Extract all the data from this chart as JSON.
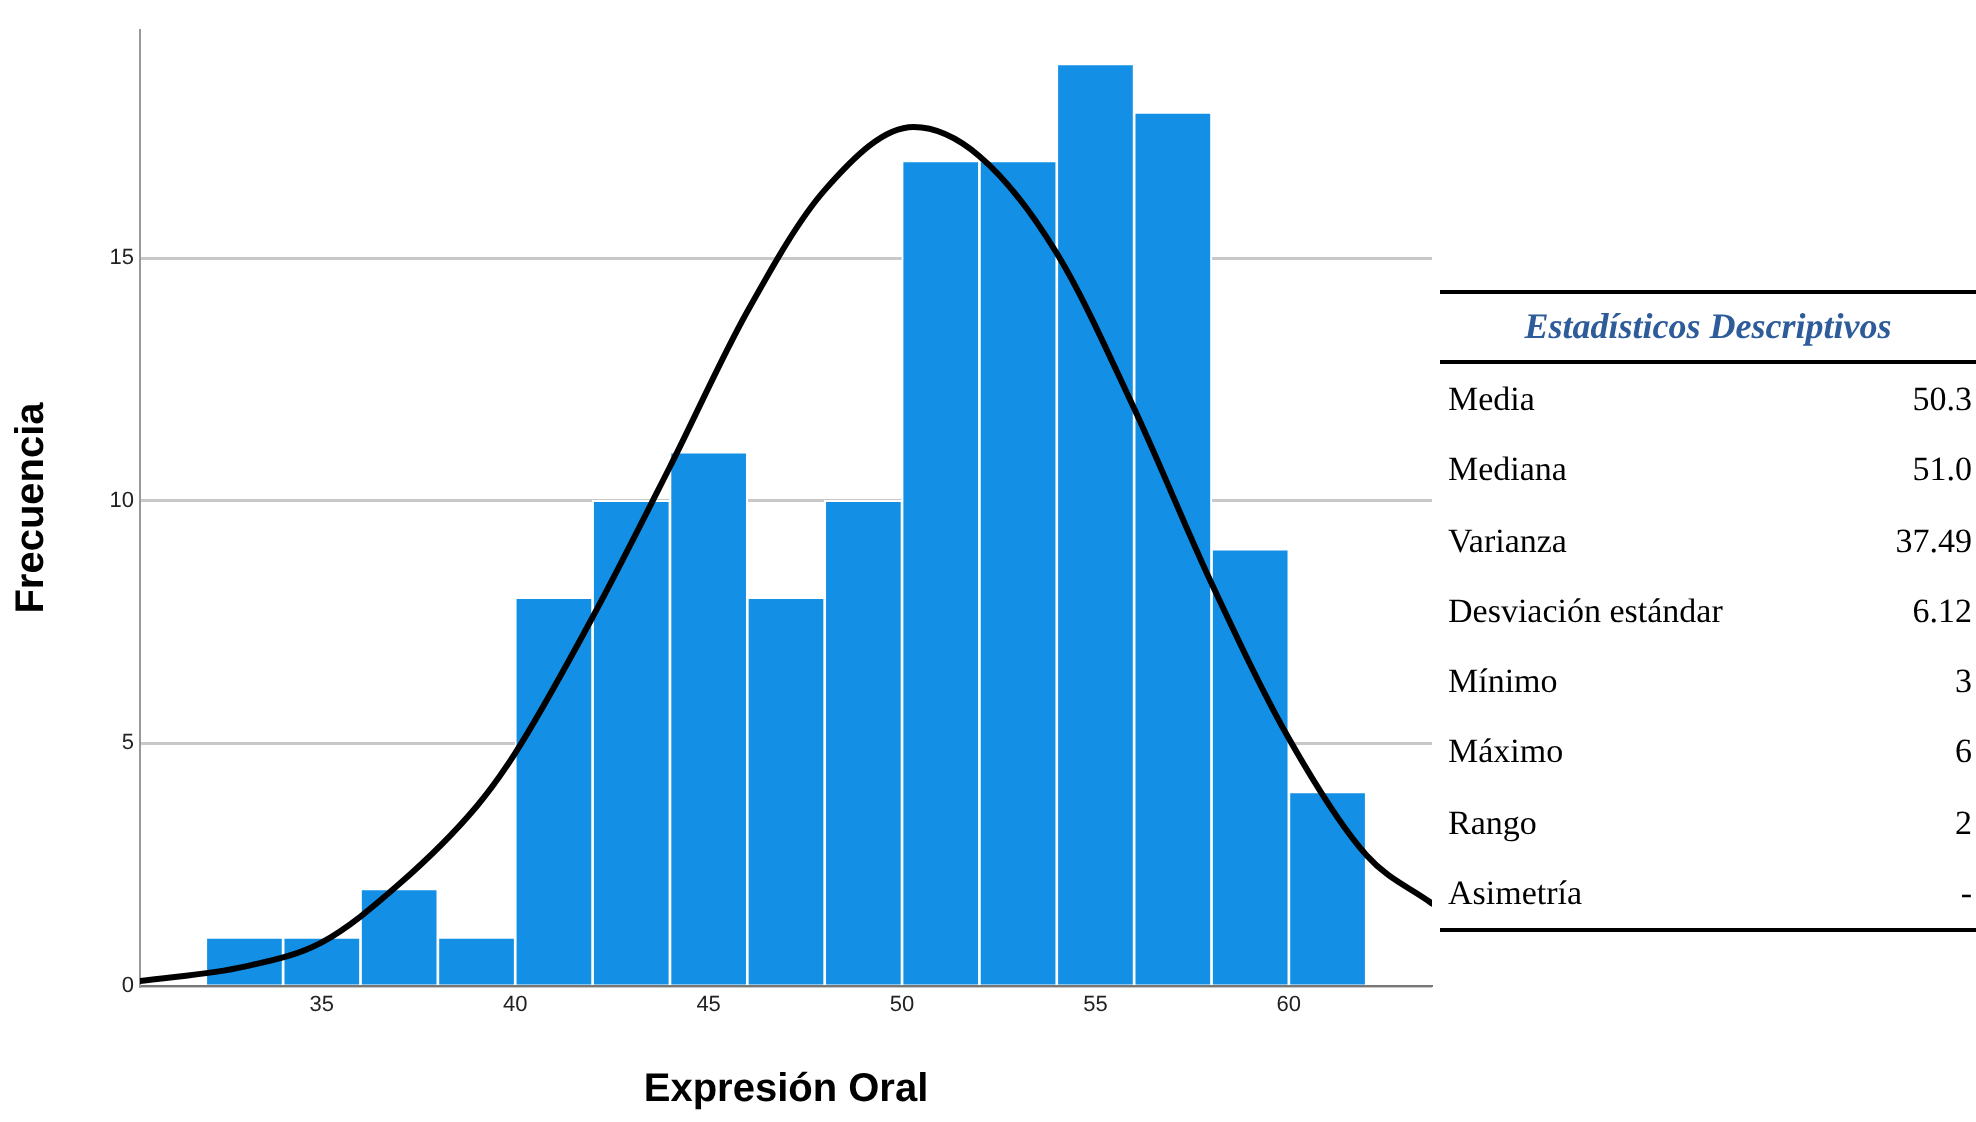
{
  "chart_data": {
    "type": "histogram",
    "xlabel": "Expresión Oral",
    "ylabel": "Frecuencia",
    "bins": [
      32,
      34,
      36,
      38,
      40,
      42,
      44,
      46,
      48,
      50,
      52,
      54,
      56,
      58,
      60,
      62
    ],
    "values": [
      1,
      1,
      2,
      1,
      8,
      10,
      11,
      8,
      10,
      17,
      17,
      19,
      18,
      9,
      4
    ],
    "color": "#1390e6",
    "xlim": [
      30.3,
      63.7
    ],
    "xticks": [
      35,
      40,
      45,
      50,
      55,
      60
    ],
    "ylim": [
      0,
      19.7
    ],
    "yticks": [
      0,
      5,
      10,
      15
    ],
    "grid": "y",
    "legend": false,
    "series": [
      {
        "type": "line",
        "color": "#000000",
        "marker": "none",
        "line_style": "solid",
        "x": [
          30.3,
          33,
          35,
          37,
          39,
          40,
          42,
          44,
          46,
          48,
          50.3,
          52,
          54,
          56,
          58,
          60,
          62,
          63.7
        ],
        "values": [
          0.1,
          0.4,
          0.9,
          2.1,
          3.7,
          4.8,
          7.6,
          10.7,
          13.9,
          16.4,
          17.7,
          17.1,
          15.1,
          11.9,
          8.3,
          5.1,
          2.7,
          1.7
        ]
      }
    ],
    "annotations": [
      "Estadísticos Descriptivos",
      "Media",
      "50.3",
      "Mediana",
      "51.0",
      "Varianza",
      "37.49",
      "Desviación estándar",
      "6.12",
      "Mínimo",
      "3",
      "Máximo",
      "6",
      "Rango",
      "2",
      "Asimetría",
      "-"
    ]
  }
}
